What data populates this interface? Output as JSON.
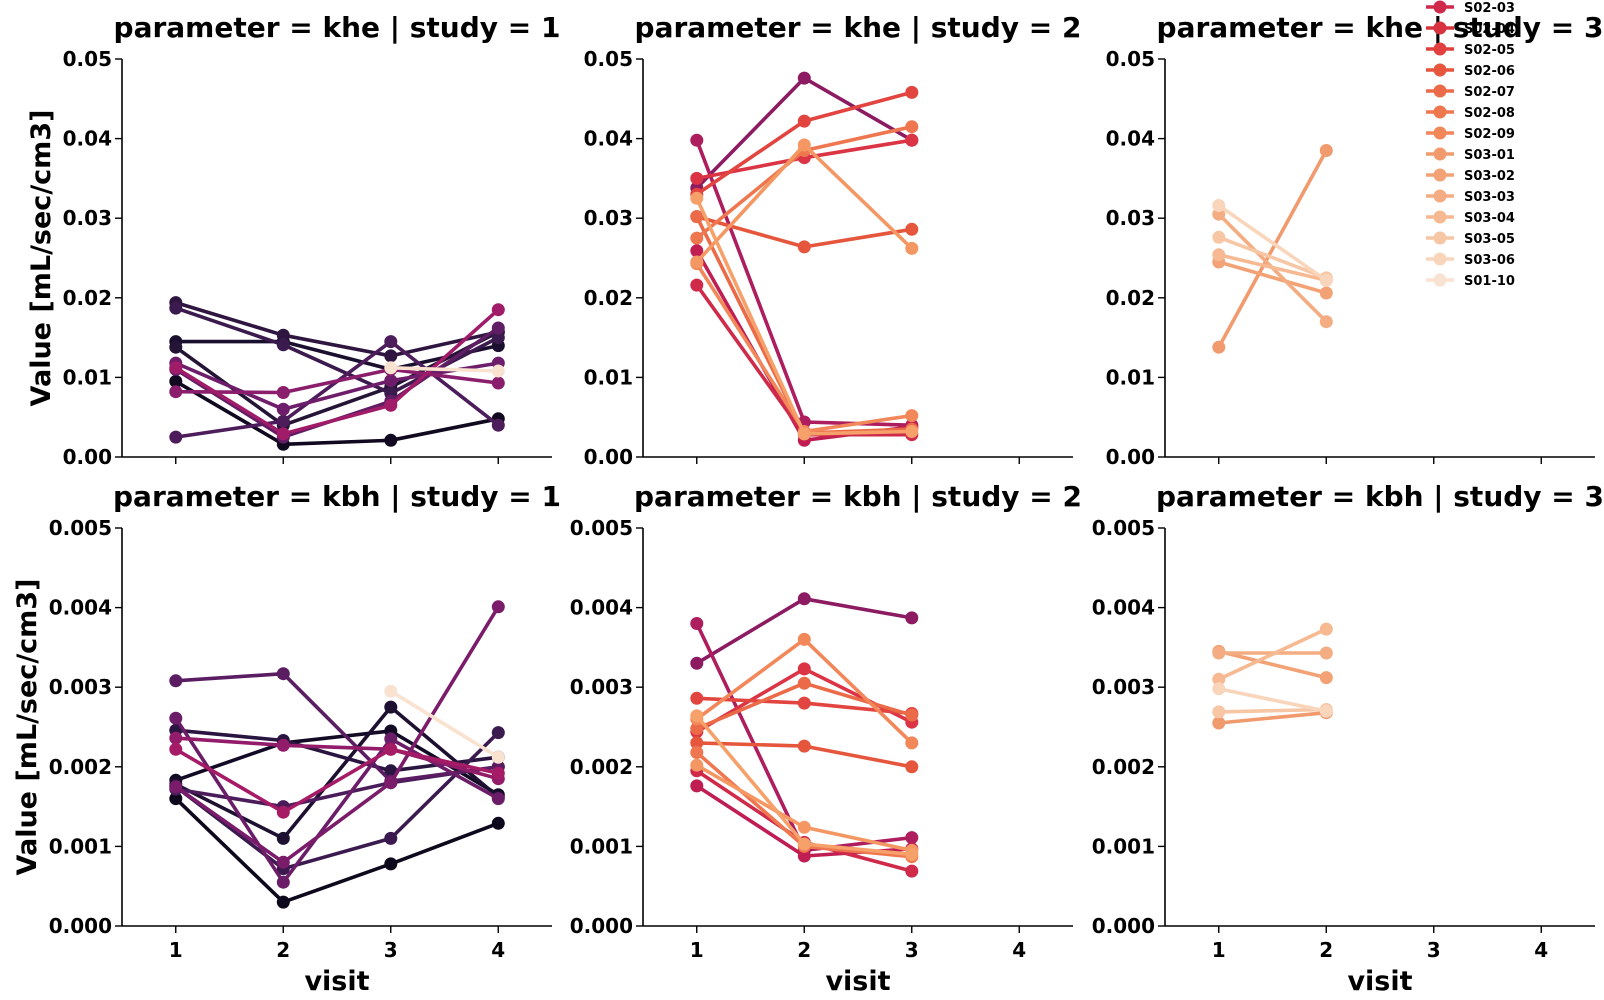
{
  "chart_data": {
    "type": "line",
    "x_label": "visit",
    "y_label": "Value [mL/sec/cm3]",
    "x_ticks": [
      "1",
      "2",
      "3",
      "4"
    ],
    "xlim": [
      0.5,
      4.5
    ],
    "legend_placement": "top-right",
    "grid": false,
    "rows": [
      {
        "parameter": "khe",
        "ylim": [
          0,
          0.05
        ],
        "y_ticks": [
          "0.00",
          "0.01",
          "0.02",
          "0.03",
          "0.04",
          "0.05"
        ],
        "y_tick_values": [
          0,
          0.01,
          0.02,
          0.03,
          0.04,
          0.05
        ]
      },
      {
        "parameter": "kbh",
        "ylim": [
          0,
          0.005
        ],
        "y_ticks": [
          "0.000",
          "0.001",
          "0.002",
          "0.003",
          "0.004",
          "0.005"
        ],
        "y_tick_values": [
          0,
          0.001,
          0.002,
          0.003,
          0.004,
          0.005
        ]
      }
    ],
    "panels": [
      {
        "row": 0,
        "col": 0,
        "title": "parameter = khe | study = 1",
        "series": [
          {
            "x": [
              1,
              2,
              3,
              4
            ],
            "y": [
              0.0145,
              0.0145,
              0.011,
              0.014
            ],
            "color": "#1a0f2e"
          },
          {
            "x": [
              1,
              2,
              3,
              4
            ],
            "y": [
              0.0095,
              0.0016,
              0.0021,
              0.0048
            ],
            "color": "#10091f"
          },
          {
            "x": [
              1,
              2,
              3,
              4
            ],
            "y": [
              0.0138,
              0.004,
              0.0088,
              0.0157
            ],
            "color": "#241435"
          },
          {
            "x": [
              1,
              2,
              3,
              4
            ],
            "y": [
              0.0194,
              0.0153,
              0.0127,
              0.0157
            ],
            "color": "#2f1640"
          },
          {
            "x": [
              1,
              2,
              3,
              4
            ],
            "y": [
              0.0187,
              0.0141,
              0.008,
              0.015
            ],
            "color": "#3b1a4d"
          },
          {
            "x": [
              1,
              2,
              3,
              4
            ],
            "y": [
              0.0025,
              0.0045,
              0.0145,
              0.004
            ],
            "color": "#4d1c5a"
          },
          {
            "x": [
              1,
              2,
              3,
              4
            ],
            "y": [
              0.011,
              0.0025,
              0.007,
              0.0162
            ],
            "color": "#5f1d64"
          },
          {
            "x": [
              1,
              2,
              3,
              4
            ],
            "y": [
              0.0118,
              0.006,
              0.0096,
              0.0118
            ],
            "color": "#6e1d6a"
          },
          {
            "x": [
              1,
              2,
              3,
              4
            ],
            "y": [
              0.0082,
              0.0081,
              0.011,
              0.0093
            ],
            "color": "#8a1d6c"
          },
          {
            "x": [
              1,
              2,
              3,
              4
            ],
            "y": [
              0.0112,
              0.0029,
              0.0065,
              0.0185
            ],
            "color": "#a01b68"
          },
          {
            "x": [
              3,
              4
            ],
            "y": [
              0.0112,
              0.0108
            ],
            "color": "#f9e2d0"
          }
        ]
      },
      {
        "row": 0,
        "col": 1,
        "title": "parameter = khe | study = 2",
        "series": [
          {
            "x": [
              1,
              2,
              3
            ],
            "y": [
              0.0338,
              0.0476,
              0.0398
            ],
            "color": "#8c1b62"
          },
          {
            "x": [
              1,
              2,
              3
            ],
            "y": [
              0.0398,
              0.0044,
              0.004
            ],
            "color": "#ae1d5e"
          },
          {
            "x": [
              1,
              2,
              3
            ],
            "y": [
              0.0259,
              0.0021,
              0.0038
            ],
            "color": "#c01e52"
          },
          {
            "x": [
              1,
              2,
              3
            ],
            "y": [
              0.0216,
              0.0028,
              0.0028
            ],
            "color": "#cf2a4a"
          },
          {
            "x": [
              1,
              2,
              3
            ],
            "y": [
              0.035,
              0.0376,
              0.0398
            ],
            "color": "#da3445"
          },
          {
            "x": [
              1,
              2,
              3
            ],
            "y": [
              0.033,
              0.0422,
              0.0458
            ],
            "color": "#e24440"
          },
          {
            "x": [
              1,
              2,
              3
            ],
            "y": [
              0.0302,
              0.0264,
              0.0286
            ],
            "color": "#e5563d"
          },
          {
            "x": [
              1,
              2,
              3
            ],
            "y": [
              0.0302,
              0.003,
              0.0035
            ],
            "color": "#eb6a47"
          },
          {
            "x": [
              1,
              2,
              3
            ],
            "y": [
              0.0275,
              0.0385,
              0.0415
            ],
            "color": "#ef7750"
          },
          {
            "x": [
              1,
              2,
              3
            ],
            "y": [
              0.0243,
              0.0032,
              0.0052
            ],
            "color": "#f2875a"
          },
          {
            "x": [
              1,
              2,
              3
            ],
            "y": [
              0.0245,
              0.0392,
              0.0262
            ],
            "color": "#f49763"
          },
          {
            "x": [
              1,
              2,
              3
            ],
            "y": [
              0.0325,
              0.0029,
              0.0032
            ],
            "color": "#f6a06a"
          }
        ]
      },
      {
        "row": 0,
        "col": 2,
        "title": "parameter = khe | study = 3",
        "series": [
          {
            "x": [
              1,
              2
            ],
            "y": [
              0.0138,
              0.0385
            ],
            "color": "#f19a6e"
          },
          {
            "x": [
              1,
              2
            ],
            "y": [
              0.0245,
              0.0206
            ],
            "color": "#f2a275"
          },
          {
            "x": [
              1,
              2
            ],
            "y": [
              0.0305,
              0.017
            ],
            "color": "#f4ad82"
          },
          {
            "x": [
              1,
              2
            ],
            "y": [
              0.0254,
              0.0222
            ],
            "color": "#f6b991"
          },
          {
            "x": [
              1,
              2
            ],
            "y": [
              0.0276,
              0.0225
            ],
            "color": "#f7c6a4"
          },
          {
            "x": [
              1,
              2
            ],
            "y": [
              0.0316,
              0.0222
            ],
            "color": "#f9d5bb"
          }
        ]
      },
      {
        "row": 1,
        "col": 0,
        "title": "parameter = kbh | study = 1",
        "series": [
          {
            "x": [
              1,
              2,
              3,
              4
            ],
            "y": [
              0.00183,
              0.0023,
              0.00245,
              0.00165
            ],
            "color": "#130b25"
          },
          {
            "x": [
              1,
              2,
              3,
              4
            ],
            "y": [
              0.0016,
              0.0003,
              0.00078,
              0.00129
            ],
            "color": "#0e081c"
          },
          {
            "x": [
              1,
              2,
              3,
              4
            ],
            "y": [
              0.00178,
              0.0011,
              0.00275,
              0.00162
            ],
            "color": "#1d1030"
          },
          {
            "x": [
              1,
              2,
              3,
              4
            ],
            "y": [
              0.00246,
              0.00233,
              0.00195,
              0.00212
            ],
            "color": "#2a1440"
          },
          {
            "x": [
              1,
              2,
              3,
              4
            ],
            "y": [
              0.00175,
              0.00072,
              0.0011,
              0.00243
            ],
            "color": "#3a1a4f"
          },
          {
            "x": [
              1,
              2,
              3,
              4
            ],
            "y": [
              0.00172,
              0.0015,
              0.0018,
              0.002
            ],
            "color": "#4a1c5a"
          },
          {
            "x": [
              1,
              2,
              3,
              4
            ],
            "y": [
              0.00308,
              0.00317,
              0.00182,
              0.002
            ],
            "color": "#5a1d62"
          },
          {
            "x": [
              1,
              2,
              3,
              4
            ],
            "y": [
              0.00261,
              0.00055,
              0.00235,
              0.0016
            ],
            "color": "#6b1d68"
          },
          {
            "x": [
              1,
              2,
              3,
              4
            ],
            "y": [
              0.00175,
              0.0008,
              0.0018,
              0.00401
            ],
            "color": "#7b1c6b"
          },
          {
            "x": [
              1,
              2,
              3,
              4
            ],
            "y": [
              0.00236,
              0.00227,
              0.00222,
              0.00185
            ],
            "color": "#921c6a"
          },
          {
            "x": [
              1,
              2,
              3,
              4
            ],
            "y": [
              0.00222,
              0.00143,
              0.00222,
              0.00192
            ],
            "color": "#a51b66"
          },
          {
            "x": [
              3,
              4
            ],
            "y": [
              0.00295,
              0.00212
            ],
            "color": "#f9e2d0"
          }
        ]
      },
      {
        "row": 1,
        "col": 1,
        "title": "parameter = kbh | study = 2",
        "series": [
          {
            "x": [
              1,
              2,
              3
            ],
            "y": [
              0.0033,
              0.00411,
              0.00387
            ],
            "color": "#8c1b62"
          },
          {
            "x": [
              1,
              2,
              3
            ],
            "y": [
              0.0038,
              0.00095,
              0.00111
            ],
            "color": "#ae1d5e"
          },
          {
            "x": [
              1,
              2,
              3
            ],
            "y": [
              0.00176,
              0.00088,
              0.00097
            ],
            "color": "#c01e52"
          },
          {
            "x": [
              1,
              2,
              3
            ],
            "y": [
              0.00195,
              0.00105,
              0.00069
            ],
            "color": "#cf2a4a"
          },
          {
            "x": [
              1,
              2,
              3
            ],
            "y": [
              0.00244,
              0.00323,
              0.00256
            ],
            "color": "#da3445"
          },
          {
            "x": [
              1,
              2,
              3
            ],
            "y": [
              0.00286,
              0.0028,
              0.00267
            ],
            "color": "#e24440"
          },
          {
            "x": [
              1,
              2,
              3
            ],
            "y": [
              0.0023,
              0.00226,
              0.002
            ],
            "color": "#e5563d"
          },
          {
            "x": [
              1,
              2,
              3
            ],
            "y": [
              0.00248,
              0.00305,
              0.00265
            ],
            "color": "#eb6a47"
          },
          {
            "x": [
              1,
              2,
              3
            ],
            "y": [
              0.00218,
              0.001,
              0.00087
            ],
            "color": "#ef7750"
          },
          {
            "x": [
              1,
              2,
              3
            ],
            "y": [
              0.0026,
              0.0036,
              0.0023
            ],
            "color": "#f2875a"
          },
          {
            "x": [
              1,
              2,
              3
            ],
            "y": [
              0.00202,
              0.00124,
              0.00095
            ],
            "color": "#f49763"
          },
          {
            "x": [
              1,
              2,
              3
            ],
            "y": [
              0.00264,
              0.00103,
              0.0009
            ],
            "color": "#f6a06a"
          }
        ]
      },
      {
        "row": 1,
        "col": 2,
        "title": "parameter = kbh | study = 3",
        "series": [
          {
            "x": [
              1,
              2
            ],
            "y": [
              0.00255,
              0.00268
            ],
            "color": "#f19a6e"
          },
          {
            "x": [
              1,
              2
            ],
            "y": [
              0.00345,
              0.00312
            ],
            "color": "#f2a275"
          },
          {
            "x": [
              1,
              2
            ],
            "y": [
              0.00343,
              0.00343
            ],
            "color": "#f4ad82"
          },
          {
            "x": [
              1,
              2
            ],
            "y": [
              0.0031,
              0.00373
            ],
            "color": "#f6b991"
          },
          {
            "x": [
              1,
              2
            ],
            "y": [
              0.00269,
              0.00272
            ],
            "color": "#f7c6a4"
          },
          {
            "x": [
              1,
              2
            ],
            "y": [
              0.00298,
              0.0027
            ],
            "color": "#f9d5bb"
          }
        ]
      }
    ],
    "legend": [
      {
        "label": "S02-03",
        "color": "#cf2a4a"
      },
      {
        "label": "S02-04",
        "color": "#d8333f"
      },
      {
        "label": "S02-05",
        "color": "#e0403e"
      },
      {
        "label": "S02-06",
        "color": "#e5563d"
      },
      {
        "label": "S02-07",
        "color": "#eb6a47"
      },
      {
        "label": "S02-08",
        "color": "#ef7750"
      },
      {
        "label": "S02-09",
        "color": "#f2875a"
      },
      {
        "label": "S03-01",
        "color": "#f19a6e"
      },
      {
        "label": "S03-02",
        "color": "#f2a275"
      },
      {
        "label": "S03-03",
        "color": "#f4ad82"
      },
      {
        "label": "S03-04",
        "color": "#f6b991"
      },
      {
        "label": "S03-05",
        "color": "#f7c6a4"
      },
      {
        "label": "S03-06",
        "color": "#f9d5bb"
      },
      {
        "label": "S01-10",
        "color": "#f9e2d0"
      }
    ]
  }
}
